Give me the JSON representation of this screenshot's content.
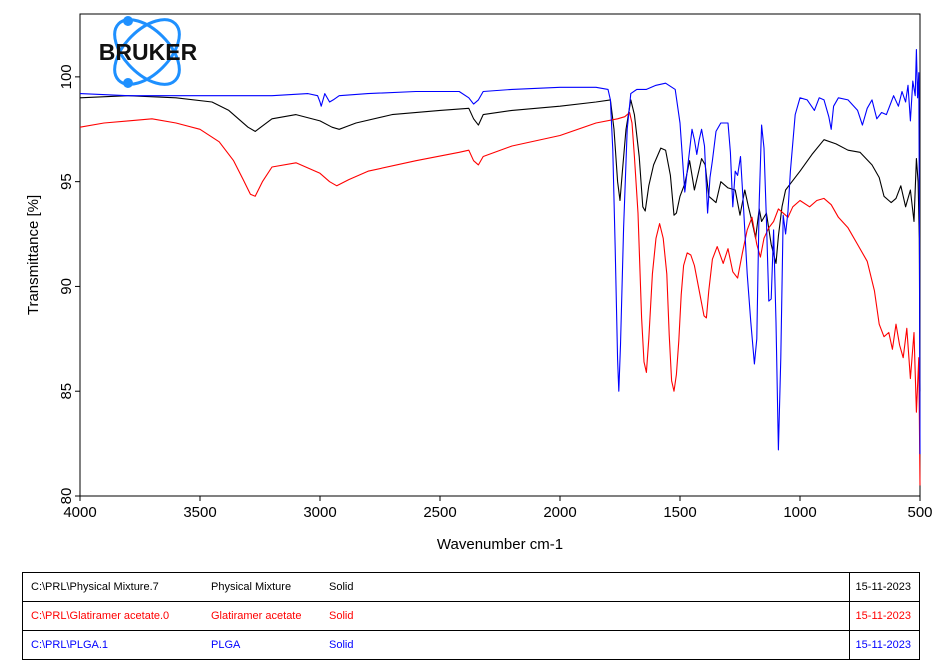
{
  "logo": {
    "text": "BRUKER",
    "color": "#1e90ff"
  },
  "chart_data": {
    "type": "line",
    "title": "",
    "xlabel": "Wavenumber cm-1",
    "ylabel": "Transmittance [%]",
    "xlim": [
      4000,
      500
    ],
    "ylim": [
      80,
      103
    ],
    "x_ticks": [
      4000,
      3500,
      3000,
      2500,
      2000,
      1500,
      1000,
      500
    ],
    "y_ticks": [
      80,
      85,
      90,
      95,
      100
    ],
    "grid": false,
    "series": [
      {
        "name": "Physical Mixture",
        "color": "#000000",
        "points": [
          [
            4000,
            99.0
          ],
          [
            3800,
            99.1
          ],
          [
            3600,
            99.0
          ],
          [
            3450,
            98.8
          ],
          [
            3380,
            98.4
          ],
          [
            3300,
            97.6
          ],
          [
            3270,
            97.4
          ],
          [
            3200,
            98.0
          ],
          [
            3100,
            98.2
          ],
          [
            3000,
            97.9
          ],
          [
            2950,
            97.6
          ],
          [
            2920,
            97.5
          ],
          [
            2850,
            97.8
          ],
          [
            2700,
            98.2
          ],
          [
            2500,
            98.4
          ],
          [
            2380,
            98.5
          ],
          [
            2360,
            98.0
          ],
          [
            2340,
            97.7
          ],
          [
            2320,
            98.2
          ],
          [
            2200,
            98.4
          ],
          [
            2000,
            98.6
          ],
          [
            1850,
            98.8
          ],
          [
            1790,
            98.9
          ],
          [
            1775,
            97.5
          ],
          [
            1760,
            95.0
          ],
          [
            1750,
            94.1
          ],
          [
            1740,
            95.5
          ],
          [
            1725,
            97.5
          ],
          [
            1705,
            98.9
          ],
          [
            1690,
            98.2
          ],
          [
            1670,
            96.2
          ],
          [
            1655,
            93.8
          ],
          [
            1645,
            93.6
          ],
          [
            1630,
            94.8
          ],
          [
            1610,
            95.8
          ],
          [
            1580,
            96.6
          ],
          [
            1560,
            96.5
          ],
          [
            1540,
            95.3
          ],
          [
            1525,
            93.4
          ],
          [
            1515,
            93.5
          ],
          [
            1500,
            94.3
          ],
          [
            1480,
            94.9
          ],
          [
            1460,
            96.0
          ],
          [
            1440,
            94.6
          ],
          [
            1420,
            95.6
          ],
          [
            1410,
            96.1
          ],
          [
            1395,
            95.8
          ],
          [
            1380,
            94.3
          ],
          [
            1350,
            94.0
          ],
          [
            1330,
            95.0
          ],
          [
            1300,
            94.7
          ],
          [
            1270,
            94.6
          ],
          [
            1250,
            93.4
          ],
          [
            1230,
            94.6
          ],
          [
            1215,
            93.8
          ],
          [
            1200,
            93.1
          ],
          [
            1185,
            92.3
          ],
          [
            1170,
            93.7
          ],
          [
            1160,
            93.1
          ],
          [
            1140,
            93.5
          ],
          [
            1120,
            92.0
          ],
          [
            1100,
            91.1
          ],
          [
            1090,
            92.4
          ],
          [
            1075,
            93.8
          ],
          [
            1060,
            94.6
          ],
          [
            1040,
            94.9
          ],
          [
            1000,
            95.5
          ],
          [
            950,
            96.3
          ],
          [
            900,
            97.0
          ],
          [
            850,
            96.8
          ],
          [
            800,
            96.5
          ],
          [
            750,
            96.4
          ],
          [
            700,
            95.8
          ],
          [
            670,
            95.2
          ],
          [
            650,
            94.3
          ],
          [
            620,
            94.0
          ],
          [
            600,
            94.2
          ],
          [
            580,
            94.8
          ],
          [
            560,
            93.8
          ],
          [
            540,
            94.6
          ],
          [
            525,
            93.1
          ],
          [
            515,
            96.1
          ],
          [
            508,
            95.0
          ],
          [
            503,
            92.3
          ],
          [
            500,
            85.0
          ]
        ]
      },
      {
        "name": "Glatiramer acetate",
        "color": "#ff0000",
        "points": [
          [
            4000,
            97.6
          ],
          [
            3900,
            97.8
          ],
          [
            3800,
            97.9
          ],
          [
            3700,
            98.0
          ],
          [
            3600,
            97.8
          ],
          [
            3500,
            97.5
          ],
          [
            3420,
            96.9
          ],
          [
            3360,
            96.0
          ],
          [
            3320,
            95.1
          ],
          [
            3290,
            94.4
          ],
          [
            3270,
            94.3
          ],
          [
            3240,
            95.0
          ],
          [
            3200,
            95.7
          ],
          [
            3100,
            95.9
          ],
          [
            3000,
            95.4
          ],
          [
            2960,
            95.0
          ],
          [
            2930,
            94.8
          ],
          [
            2880,
            95.1
          ],
          [
            2800,
            95.5
          ],
          [
            2600,
            96.0
          ],
          [
            2420,
            96.4
          ],
          [
            2380,
            96.5
          ],
          [
            2360,
            96.0
          ],
          [
            2340,
            95.8
          ],
          [
            2320,
            96.2
          ],
          [
            2200,
            96.7
          ],
          [
            2000,
            97.2
          ],
          [
            1850,
            97.8
          ],
          [
            1760,
            98.0
          ],
          [
            1730,
            98.1
          ],
          [
            1710,
            98.3
          ],
          [
            1700,
            97.8
          ],
          [
            1690,
            96.2
          ],
          [
            1675,
            93.5
          ],
          [
            1660,
            88.5
          ],
          [
            1650,
            86.4
          ],
          [
            1640,
            85.9
          ],
          [
            1630,
            87.5
          ],
          [
            1615,
            90.6
          ],
          [
            1600,
            92.3
          ],
          [
            1585,
            93.0
          ],
          [
            1570,
            92.3
          ],
          [
            1555,
            90.6
          ],
          [
            1545,
            87.7
          ],
          [
            1535,
            85.5
          ],
          [
            1525,
            85.0
          ],
          [
            1515,
            85.8
          ],
          [
            1505,
            87.4
          ],
          [
            1495,
            89.6
          ],
          [
            1485,
            91.0
          ],
          [
            1470,
            91.6
          ],
          [
            1455,
            91.5
          ],
          [
            1440,
            91.0
          ],
          [
            1420,
            89.8
          ],
          [
            1400,
            88.6
          ],
          [
            1390,
            88.5
          ],
          [
            1380,
            89.8
          ],
          [
            1365,
            91.3
          ],
          [
            1345,
            91.9
          ],
          [
            1320,
            91.1
          ],
          [
            1300,
            91.8
          ],
          [
            1280,
            90.7
          ],
          [
            1260,
            90.4
          ],
          [
            1240,
            91.6
          ],
          [
            1220,
            92.7
          ],
          [
            1200,
            93.3
          ],
          [
            1180,
            92.0
          ],
          [
            1165,
            91.4
          ],
          [
            1150,
            92.3
          ],
          [
            1130,
            92.8
          ],
          [
            1110,
            93.1
          ],
          [
            1090,
            93.7
          ],
          [
            1070,
            93.5
          ],
          [
            1050,
            93.3
          ],
          [
            1030,
            93.8
          ],
          [
            1000,
            94.1
          ],
          [
            960,
            93.8
          ],
          [
            930,
            94.1
          ],
          [
            900,
            94.2
          ],
          [
            870,
            93.9
          ],
          [
            840,
            93.3
          ],
          [
            800,
            92.8
          ],
          [
            760,
            92.0
          ],
          [
            720,
            91.2
          ],
          [
            690,
            89.8
          ],
          [
            670,
            88.2
          ],
          [
            650,
            87.6
          ],
          [
            630,
            87.8
          ],
          [
            615,
            87.0
          ],
          [
            600,
            88.2
          ],
          [
            585,
            87.2
          ],
          [
            570,
            86.6
          ],
          [
            555,
            88.0
          ],
          [
            540,
            85.6
          ],
          [
            525,
            87.8
          ],
          [
            515,
            84.0
          ],
          [
            505,
            86.6
          ],
          [
            500,
            80.5
          ]
        ]
      },
      {
        "name": "PLGA",
        "color": "#0000ff",
        "points": [
          [
            4000,
            99.2
          ],
          [
            3800,
            99.1
          ],
          [
            3600,
            99.1
          ],
          [
            3400,
            99.1
          ],
          [
            3200,
            99.1
          ],
          [
            3050,
            99.2
          ],
          [
            3010,
            99.1
          ],
          [
            3000,
            98.8
          ],
          [
            2995,
            98.6
          ],
          [
            2980,
            99.2
          ],
          [
            2960,
            98.8
          ],
          [
            2945,
            98.9
          ],
          [
            2920,
            99.1
          ],
          [
            2800,
            99.2
          ],
          [
            2600,
            99.3
          ],
          [
            2420,
            99.3
          ],
          [
            2380,
            99.0
          ],
          [
            2360,
            98.7
          ],
          [
            2340,
            98.9
          ],
          [
            2320,
            99.3
          ],
          [
            2200,
            99.4
          ],
          [
            2000,
            99.5
          ],
          [
            1850,
            99.5
          ],
          [
            1800,
            99.4
          ],
          [
            1790,
            98.9
          ],
          [
            1780,
            96.5
          ],
          [
            1770,
            91.8
          ],
          [
            1760,
            86.5
          ],
          [
            1755,
            85.0
          ],
          [
            1748,
            87.2
          ],
          [
            1735,
            92.8
          ],
          [
            1720,
            97.5
          ],
          [
            1705,
            99.2
          ],
          [
            1680,
            99.4
          ],
          [
            1640,
            99.4
          ],
          [
            1600,
            99.6
          ],
          [
            1560,
            99.7
          ],
          [
            1520,
            99.4
          ],
          [
            1500,
            97.8
          ],
          [
            1480,
            94.5
          ],
          [
            1465,
            96.0
          ],
          [
            1450,
            97.5
          ],
          [
            1440,
            97.0
          ],
          [
            1430,
            96.3
          ],
          [
            1420,
            97.0
          ],
          [
            1410,
            97.5
          ],
          [
            1398,
            96.7
          ],
          [
            1385,
            93.5
          ],
          [
            1375,
            95.2
          ],
          [
            1365,
            96.0
          ],
          [
            1350,
            97.4
          ],
          [
            1330,
            97.8
          ],
          [
            1300,
            97.8
          ],
          [
            1290,
            96.4
          ],
          [
            1280,
            93.8
          ],
          [
            1270,
            95.5
          ],
          [
            1260,
            95.3
          ],
          [
            1248,
            96.2
          ],
          [
            1235,
            93.7
          ],
          [
            1220,
            90.6
          ],
          [
            1205,
            88.3
          ],
          [
            1190,
            86.3
          ],
          [
            1180,
            87.5
          ],
          [
            1170,
            94.0
          ],
          [
            1160,
            97.7
          ],
          [
            1150,
            96.6
          ],
          [
            1140,
            93.2
          ],
          [
            1130,
            89.3
          ],
          [
            1120,
            89.4
          ],
          [
            1110,
            92.7
          ],
          [
            1100,
            88.3
          ],
          [
            1090,
            82.2
          ],
          [
            1080,
            86.6
          ],
          [
            1070,
            93.4
          ],
          [
            1060,
            92.5
          ],
          [
            1050,
            93.6
          ],
          [
            1040,
            95.5
          ],
          [
            1020,
            98.2
          ],
          [
            1000,
            99.0
          ],
          [
            970,
            98.9
          ],
          [
            940,
            98.4
          ],
          [
            920,
            99.0
          ],
          [
            900,
            98.9
          ],
          [
            880,
            98.1
          ],
          [
            870,
            97.5
          ],
          [
            860,
            98.6
          ],
          [
            840,
            99.0
          ],
          [
            800,
            98.9
          ],
          [
            760,
            98.4
          ],
          [
            740,
            97.7
          ],
          [
            720,
            98.5
          ],
          [
            700,
            98.9
          ],
          [
            680,
            98.0
          ],
          [
            660,
            98.3
          ],
          [
            640,
            98.2
          ],
          [
            610,
            99.1
          ],
          [
            590,
            98.6
          ],
          [
            575,
            99.3
          ],
          [
            560,
            98.8
          ],
          [
            550,
            99.6
          ],
          [
            540,
            97.9
          ],
          [
            530,
            99.8
          ],
          [
            520,
            99.1
          ],
          [
            515,
            101.3
          ],
          [
            510,
            99.0
          ],
          [
            505,
            100.2
          ],
          [
            502,
            92.0
          ],
          [
            500,
            82.0
          ]
        ]
      }
    ]
  },
  "legend_rows": [
    {
      "path": "C:\\PRL\\Physical Mixture.7",
      "name": "Physical Mixture",
      "state": "Solid",
      "date": "15-11-2023",
      "color": "#000000"
    },
    {
      "path": "C:\\PRL\\Glatiramer acetate.0",
      "name": "Glatiramer acetate",
      "state": "Solid",
      "date": "15-11-2023",
      "color": "#ff0000"
    },
    {
      "path": "C:\\PRL\\PLGA.1",
      "name": "PLGA",
      "state": "Solid",
      "date": "15-11-2023",
      "color": "#0000ff"
    }
  ]
}
